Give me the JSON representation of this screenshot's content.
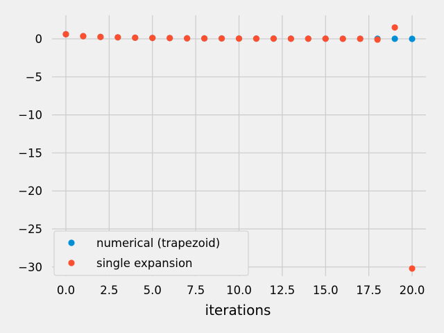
{
  "chart_data": {
    "type": "scatter",
    "title": "",
    "xlabel": "iterations",
    "ylabel": "",
    "xlim": [
      -0.8,
      20.8
    ],
    "ylim": [
      -31.2,
      3.1
    ],
    "x_ticks": [
      0.0,
      2.5,
      5.0,
      7.5,
      10.0,
      12.5,
      15.0,
      17.5,
      20.0
    ],
    "x_tick_labels": [
      "0.0",
      "2.5",
      "5.0",
      "7.5",
      "10.0",
      "12.5",
      "15.0",
      "17.5",
      "20.0"
    ],
    "y_ticks": [
      0,
      -5,
      -10,
      -15,
      -20,
      -25,
      -30
    ],
    "y_tick_labels": [
      "0",
      "−5",
      "−10",
      "−15",
      "−20",
      "−25",
      "−30"
    ],
    "grid": true,
    "legend_position": "lower-left",
    "series": [
      {
        "name": "numerical (trapezoid)",
        "color": "#008fd5",
        "x": [
          0,
          1,
          2,
          3,
          4,
          5,
          6,
          7,
          8,
          9,
          10,
          11,
          12,
          13,
          14,
          15,
          16,
          17,
          18,
          19,
          20
        ],
        "y": [
          0.6,
          0.35,
          0.25,
          0.2,
          0.15,
          0.12,
          0.1,
          0.07,
          0.06,
          0.05,
          0.04,
          0.03,
          0.03,
          0.02,
          0.02,
          0.02,
          0.01,
          0.01,
          0.01,
          0.01,
          0.0
        ]
      },
      {
        "name": "single expansion",
        "color": "#fc4f30",
        "x": [
          0,
          1,
          2,
          3,
          4,
          5,
          6,
          7,
          8,
          9,
          10,
          11,
          12,
          13,
          14,
          15,
          16,
          17,
          18,
          19,
          20
        ],
        "y": [
          0.6,
          0.35,
          0.25,
          0.2,
          0.15,
          0.12,
          0.1,
          0.07,
          0.06,
          0.05,
          0.04,
          0.03,
          0.03,
          0.02,
          0.02,
          0.02,
          0.01,
          0.01,
          -0.1,
          1.5,
          -30.2
        ]
      }
    ]
  }
}
